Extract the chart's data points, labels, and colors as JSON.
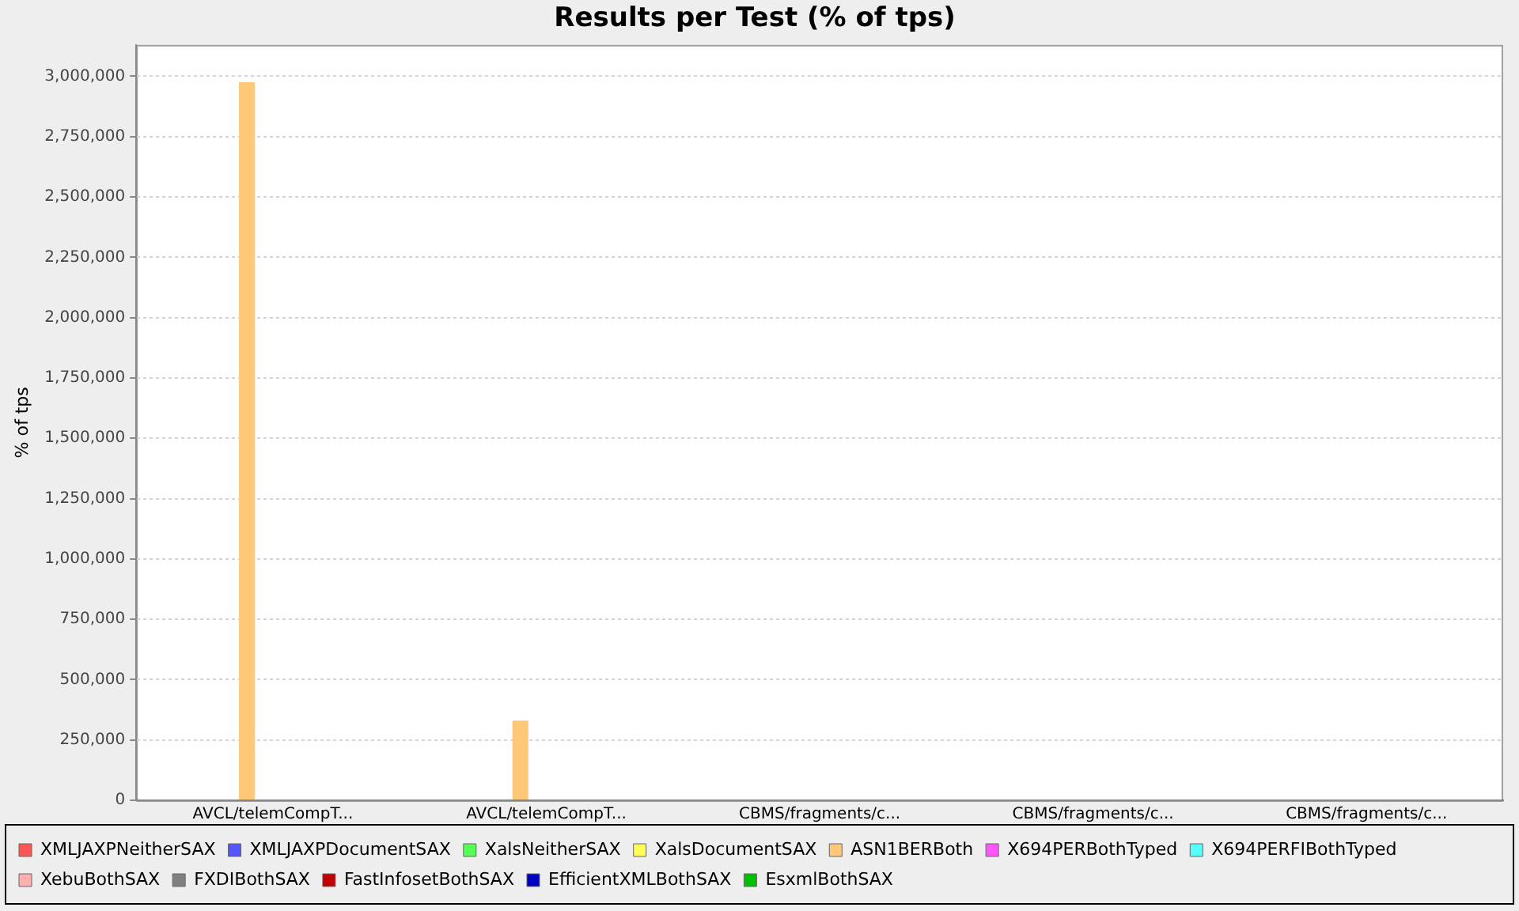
{
  "chart_data": {
    "type": "bar",
    "title": "Results per Test (% of tps)",
    "ylabel": "% of tps",
    "categories": [
      "AVCL/telemCompT...",
      "AVCL/telemCompT...",
      "CBMS/fragments/c...",
      "CBMS/fragments/c...",
      "CBMS/fragments/c..."
    ],
    "series": [
      {
        "name": "XMLJAXPNeitherSAX",
        "color": "#ff5555",
        "values": [
          0,
          0,
          0,
          0,
          0
        ]
      },
      {
        "name": "XMLJAXPDocumentSAX",
        "color": "#5555ff",
        "values": [
          0,
          0,
          0,
          0,
          0
        ]
      },
      {
        "name": "XalsNeitherSAX",
        "color": "#55ff55",
        "values": [
          0,
          0,
          0,
          0,
          0
        ]
      },
      {
        "name": "XalsDocumentSAX",
        "color": "#ffff55",
        "values": [
          0,
          0,
          0,
          0,
          0
        ]
      },
      {
        "name": "ASN1BERBoth",
        "color": "#ffc878",
        "values": [
          2975000,
          330000,
          0,
          0,
          0
        ]
      },
      {
        "name": "X694PERBothTyped",
        "color": "#ff55ff",
        "values": [
          0,
          0,
          0,
          0,
          0
        ]
      },
      {
        "name": "X694PERFIBothTyped",
        "color": "#55ffff",
        "values": [
          0,
          0,
          0,
          0,
          0
        ]
      },
      {
        "name": "XebuBothSAX",
        "color": "#ffafaf",
        "values": [
          0,
          0,
          0,
          0,
          0
        ]
      },
      {
        "name": "FXDIBothSAX",
        "color": "#808080",
        "values": [
          0,
          0,
          0,
          0,
          0
        ]
      },
      {
        "name": "FastInfosetBothSAX",
        "color": "#c00000",
        "values": [
          0,
          0,
          0,
          0,
          0
        ]
      },
      {
        "name": "EfficientXMLBothSAX",
        "color": "#0000c0",
        "values": [
          0,
          0,
          0,
          0,
          0
        ]
      },
      {
        "name": "EsxmlBothSAX",
        "color": "#00c000",
        "values": [
          0,
          0,
          0,
          0,
          0
        ]
      }
    ],
    "ylim": [
      0,
      3130000
    ],
    "yticks": [
      {
        "value": 0,
        "label": "0"
      },
      {
        "value": 250000,
        "label": "250,000"
      },
      {
        "value": 500000,
        "label": "500,000"
      },
      {
        "value": 750000,
        "label": "750,000"
      },
      {
        "value": 1000000,
        "label": "1,000,000"
      },
      {
        "value": 1250000,
        "label": "1,250,000"
      },
      {
        "value": 1500000,
        "label": "1,500,000"
      },
      {
        "value": 1750000,
        "label": "1,750,000"
      },
      {
        "value": 2000000,
        "label": "2,000,000"
      },
      {
        "value": 2250000,
        "label": "2,250,000"
      },
      {
        "value": 2500000,
        "label": "2,500,000"
      },
      {
        "value": 2750000,
        "label": "2,750,000"
      },
      {
        "value": 3000000,
        "label": "3,000,000"
      }
    ],
    "grid": "y",
    "legend": "bottom"
  }
}
